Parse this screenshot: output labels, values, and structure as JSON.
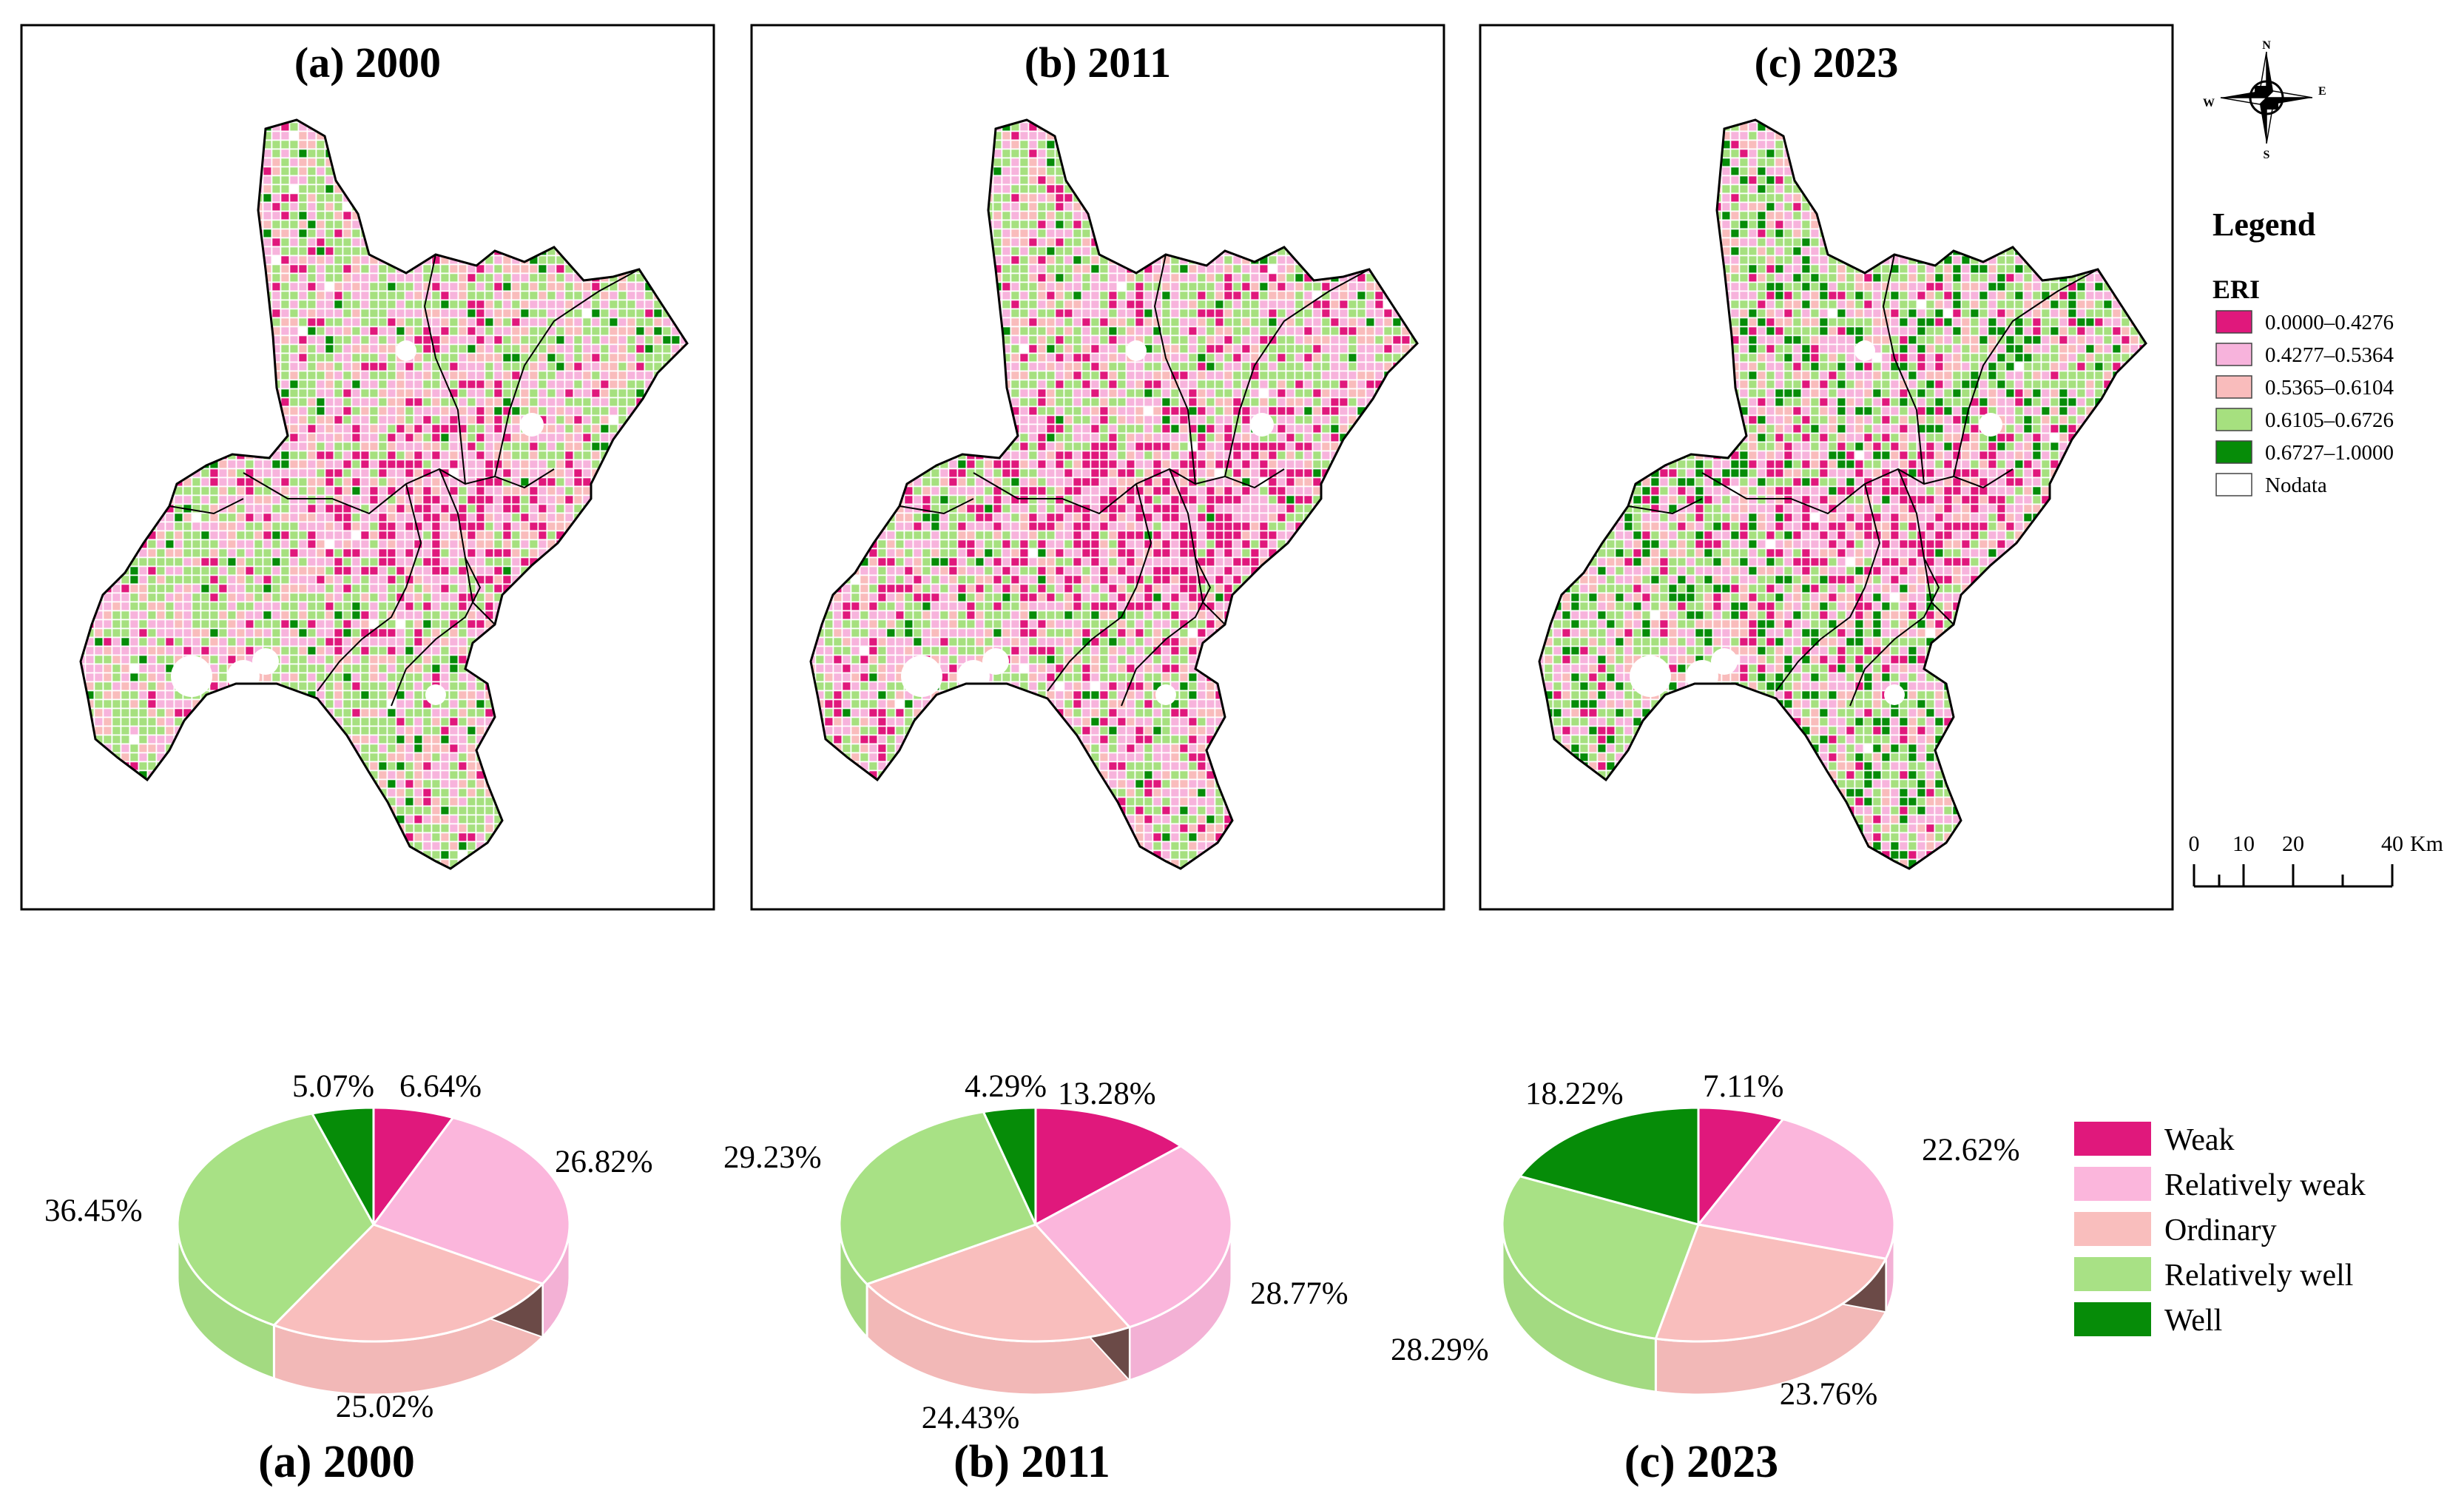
{
  "maps": [
    {
      "title": "(a)  2000",
      "seed": 11,
      "palette": "2000"
    },
    {
      "title": "(b)  2011",
      "seed": 23,
      "palette": "2011"
    },
    {
      "title": "(c)  2023",
      "seed": 37,
      "palette": "2023"
    }
  ],
  "map_legend": {
    "heading": "Legend",
    "subheading": "ERI",
    "classes": [
      {
        "label": "0.0000–0.4276",
        "color": "#e0187c"
      },
      {
        "label": "0.4277–0.5364",
        "color": "#f7b3dc"
      },
      {
        "label": "0.5365–0.6104",
        "color": "#f9bcbc"
      },
      {
        "label": "0.6105–0.6726",
        "color": "#a6e07f"
      },
      {
        "label": "0.6727–1.0000",
        "color": "#068c08"
      },
      {
        "label": "Nodata",
        "color": "#ffffff"
      }
    ]
  },
  "compass": {
    "n": "N",
    "s": "S",
    "e": "E",
    "w": "W"
  },
  "scale_bar": {
    "ticks": [
      "0",
      "10",
      "20",
      "40"
    ],
    "unit": "Km"
  },
  "chart_data": {
    "type": "pie",
    "categories": [
      "Weak",
      "Relatively weak",
      "Ordinary",
      "Relatively well",
      "Well"
    ],
    "colors": [
      "#e0187c",
      "#fbb6dc",
      "#f9bebd",
      "#a8e185",
      "#068c08"
    ],
    "pies": [
      {
        "title": "(a)  2000",
        "values": [
          6.64,
          26.82,
          25.02,
          36.45,
          5.07
        ],
        "labels": [
          "6.64%",
          "26.82%",
          "25.02%",
          "36.45%",
          "5.07%"
        ]
      },
      {
        "title": "(b)  2011",
        "values": [
          13.28,
          28.77,
          24.43,
          29.23,
          4.29
        ],
        "labels": [
          "13.28%",
          "28.77%",
          "24.43%",
          "29.23%",
          "4.29%"
        ]
      },
      {
        "title": "(c)  2023",
        "values": [
          7.11,
          22.62,
          23.76,
          28.29,
          18.22
        ],
        "labels": [
          "7.11%",
          "22.62%",
          "23.76%",
          "28.29%",
          "18.22%"
        ]
      }
    ]
  }
}
